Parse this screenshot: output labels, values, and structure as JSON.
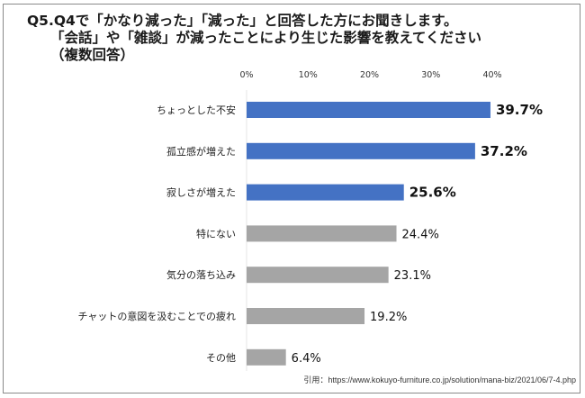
{
  "title": {
    "line1": "Q5.Q4で「かなり減った」「減った」と回答した方にお聞きします。",
    "line2": "「会話」や「雑談」が減ったことにより生じた影響を教えてください",
    "line3": "（複数回答）"
  },
  "source": "引用：https://www.kokuyo-furniture.co.jp/solution/mana-biz/2021/06/7-4.php",
  "colors": {
    "highlight": "#4472c4",
    "normal": "#a5a5a5",
    "axis": "#e6e6e6"
  },
  "chart_data": {
    "type": "bar",
    "orientation": "horizontal",
    "title": "「会話」や「雑談」が減ったことにより生じた影響（複数回答）",
    "xlabel": "",
    "ylabel": "",
    "xlim": [
      0,
      40
    ],
    "ticks": [
      0,
      10,
      20,
      30,
      40
    ],
    "tick_labels": [
      "0%",
      "10%",
      "20%",
      "30%",
      "40%"
    ],
    "tick_position": "top",
    "grid": false,
    "categories": [
      "ちょっとした不安",
      "孤立感が増えた",
      "寂しさが増えた",
      "特にない",
      "気分の落ち込み",
      "チャットの意図を汲むことでの疲れ",
      "その他"
    ],
    "values": [
      39.7,
      37.2,
      25.6,
      24.4,
      23.1,
      19.2,
      6.4
    ],
    "labels": [
      "39.7%",
      "37.2%",
      "25.6%",
      "24.4%",
      "23.1%",
      "19.2%",
      "6.4%"
    ],
    "highlighted": [
      true,
      true,
      true,
      false,
      false,
      false,
      false
    ]
  }
}
